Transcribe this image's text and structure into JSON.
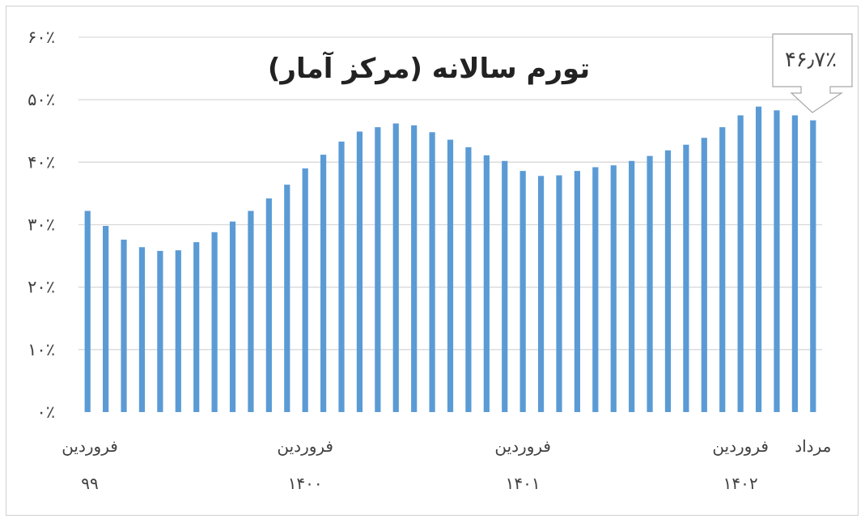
{
  "chart_data": {
    "type": "bar",
    "title": "تورم سالانه (مرکز آمار)",
    "ylim": [
      0,
      60
    ],
    "yticks": [
      {
        "value": 0,
        "label": "۰٪"
      },
      {
        "value": 10,
        "label": "۱۰٪"
      },
      {
        "value": 20,
        "label": "۲۰٪"
      },
      {
        "value": 30,
        "label": "۳۰٪"
      },
      {
        "value": 40,
        "label": "۴۰٪"
      },
      {
        "value": 50,
        "label": "۵۰٪"
      },
      {
        "value": 60,
        "label": "۶۰٪"
      }
    ],
    "xticks": [
      {
        "index": 0,
        "line1": "فروردین",
        "line2": "۹۹"
      },
      {
        "index": 12,
        "line1": "فروردین",
        "line2": "۱۴۰۰"
      },
      {
        "index": 24,
        "line1": "فروردین",
        "line2": "۱۴۰۱"
      },
      {
        "index": 36,
        "line1": "فروردین",
        "line2": "۱۴۰۲"
      },
      {
        "index": 40,
        "line1": "مرداد",
        "line2": ""
      }
    ],
    "values": [
      32.2,
      29.8,
      27.6,
      26.4,
      25.8,
      25.9,
      27.2,
      28.8,
      30.5,
      32.2,
      34.2,
      36.4,
      39.0,
      41.2,
      43.3,
      44.9,
      45.6,
      46.2,
      45.9,
      44.8,
      43.6,
      42.4,
      41.1,
      40.2,
      38.6,
      37.8,
      37.9,
      38.6,
      39.2,
      39.5,
      40.2,
      41.0,
      41.9,
      42.8,
      43.9,
      45.6,
      47.5,
      48.9,
      48.3,
      47.5,
      46.7
    ],
    "callout": "۴۶٫۷٪",
    "colors": {
      "bar": "#5b9bd5",
      "grid": "#d9d9d9"
    },
    "grid": true
  }
}
